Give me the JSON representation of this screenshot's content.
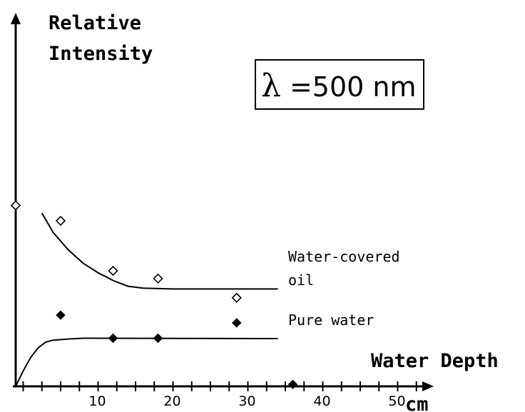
{
  "chart_data": {
    "type": "scatter",
    "title": "",
    "ylabel_line1": "Relative",
    "ylabel_line2": "Intensity",
    "xlabel": "Water Depth",
    "x_unit": "cm",
    "annotation": {
      "symbol": "λ",
      "text": " =500 nm"
    },
    "xlim": [
      -1,
      54
    ],
    "ylim": [
      0,
      1
    ],
    "x_ticks": [
      10,
      20,
      30,
      40,
      50
    ],
    "x_minor_tick_step": 2.5,
    "grid": false,
    "series": [
      {
        "name": "Water-covered oil",
        "label_line1": "Water-covered",
        "label_line2": "oil",
        "marker": "open-diamond",
        "points": [
          {
            "x": -1,
            "y": 0.47
          },
          {
            "x": 5,
            "y": 0.43
          },
          {
            "x": 12,
            "y": 0.3
          },
          {
            "x": 18,
            "y": 0.28
          },
          {
            "x": 28.5,
            "y": 0.23
          }
        ],
        "fit_curve": [
          {
            "x": 2.5,
            "y": 0.45
          },
          {
            "x": 4,
            "y": 0.4
          },
          {
            "x": 6,
            "y": 0.355
          },
          {
            "x": 8,
            "y": 0.32
          },
          {
            "x": 10,
            "y": 0.295
          },
          {
            "x": 12,
            "y": 0.275
          },
          {
            "x": 14,
            "y": 0.26
          },
          {
            "x": 16,
            "y": 0.255
          },
          {
            "x": 20,
            "y": 0.253
          },
          {
            "x": 34,
            "y": 0.253
          }
        ]
      },
      {
        "name": "Pure water",
        "label_line1": "Pure water",
        "marker": "filled-diamond",
        "points": [
          {
            "x": 5,
            "y": 0.185
          },
          {
            "x": 12,
            "y": 0.125
          },
          {
            "x": 18,
            "y": 0.125
          },
          {
            "x": 28.5,
            "y": 0.165
          },
          {
            "x": 36,
            "y": 0.005
          }
        ],
        "fit_curve": [
          {
            "x": -1,
            "y": 0.0
          },
          {
            "x": 0,
            "y": 0.04
          },
          {
            "x": 1,
            "y": 0.075
          },
          {
            "x": 2,
            "y": 0.1
          },
          {
            "x": 3,
            "y": 0.115
          },
          {
            "x": 4,
            "y": 0.12
          },
          {
            "x": 6,
            "y": 0.123
          },
          {
            "x": 8,
            "y": 0.125
          },
          {
            "x": 34,
            "y": 0.124
          }
        ]
      }
    ]
  }
}
